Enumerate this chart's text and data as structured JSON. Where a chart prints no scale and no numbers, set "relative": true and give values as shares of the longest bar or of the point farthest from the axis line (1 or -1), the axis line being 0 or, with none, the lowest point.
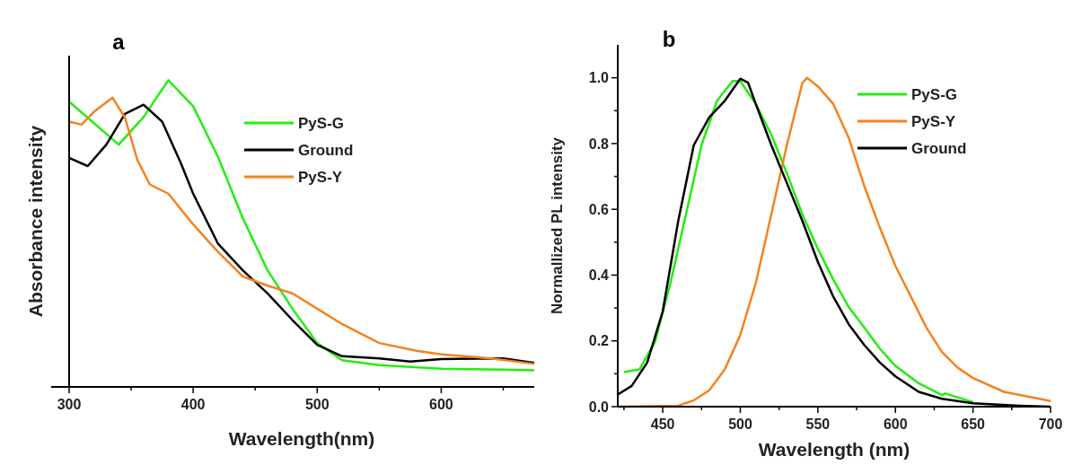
{
  "chart_data": [
    {
      "type": "line",
      "title": "a",
      "xlabel": "Wavelength(nm)",
      "ylabel": "Absorbance intensity",
      "relative": true,
      "xlim": [
        300,
        675
      ],
      "xticks": [
        300,
        {
          "value": 350,
          "label": null
        },
        400,
        {
          "value": 450,
          "label": null
        },
        500,
        {
          "value": 550,
          "label": null
        },
        600,
        {
          "value": 650,
          "label": null
        }
      ],
      "tick_labels": "x",
      "legend": "top right",
      "grid": false,
      "marker": "none",
      "line_style": "solid",
      "series": [
        {
          "name": "PyS-G",
          "color": "#22ee11",
          "x": [
            300,
            340,
            360,
            380,
            400,
            420,
            440,
            460,
            480,
            500,
            520,
            550,
            600,
            650,
            675
          ],
          "values": [
            0.93,
            0.79,
            0.88,
            1.0,
            0.915,
            0.75,
            0.55,
            0.38,
            0.255,
            0.143,
            0.087,
            0.071,
            0.059,
            0.056,
            0.054
          ]
        },
        {
          "name": "Ground",
          "color": "#000000",
          "x": [
            300,
            315,
            330,
            345,
            360,
            375,
            390,
            400,
            420,
            440,
            460,
            480,
            500,
            520,
            550,
            575,
            600,
            650,
            675
          ],
          "values": [
            0.747,
            0.72,
            0.79,
            0.89,
            0.92,
            0.865,
            0.73,
            0.63,
            0.467,
            0.38,
            0.305,
            0.218,
            0.137,
            0.1,
            0.093,
            0.083,
            0.091,
            0.093,
            0.078
          ]
        },
        {
          "name": "PyS-Y",
          "color": "#f5821f",
          "x": [
            300,
            310,
            320,
            335,
            345,
            355,
            365,
            380,
            400,
            420,
            440,
            460,
            480,
            500,
            520,
            550,
            580,
            600,
            640,
            675
          ],
          "values": [
            0.865,
            0.855,
            0.897,
            0.943,
            0.878,
            0.74,
            0.66,
            0.63,
            0.53,
            0.44,
            0.36,
            0.33,
            0.305,
            0.255,
            0.205,
            0.143,
            0.118,
            0.106,
            0.093,
            0.075
          ]
        }
      ]
    },
    {
      "type": "line",
      "title": "b",
      "xlabel": "Wavelength (nm)",
      "ylabel": "Normallized PL intensity",
      "xlim": [
        421,
        700
      ],
      "ylim": [
        0,
        1.1
      ],
      "xticks": [
        {
          "value": 425,
          "label": null
        },
        450,
        {
          "value": 475,
          "label": null
        },
        500,
        {
          "value": 525,
          "label": null
        },
        550,
        {
          "value": 575,
          "label": null
        },
        600,
        {
          "value": 625,
          "label": null
        },
        650,
        {
          "value": 675,
          "label": null
        },
        700
      ],
      "yticks": [
        {
          "value": 0,
          "label": "0.0"
        },
        {
          "value": 0.1,
          "label": null
        },
        0.2,
        {
          "value": 0.3,
          "label": null
        },
        0.4,
        {
          "value": 0.5,
          "label": null
        },
        0.6,
        {
          "value": 0.7,
          "label": null
        },
        0.8,
        {
          "value": 0.9,
          "label": null
        },
        {
          "value": 1,
          "label": "1.0"
        }
      ],
      "legend": "top right",
      "grid": false,
      "marker": "none",
      "line_style": "solid",
      "series": [
        {
          "name": "PyS-G",
          "color": "#22ee11",
          "x": [
            425,
            435,
            445,
            455,
            465,
            475,
            485,
            495,
            500,
            510,
            520,
            530,
            540,
            550,
            560,
            570,
            580,
            590,
            600,
            615,
            630,
            632,
            650
          ],
          "values": [
            0.105,
            0.113,
            0.197,
            0.376,
            0.585,
            0.795,
            0.93,
            0.99,
            0.99,
            0.92,
            0.827,
            0.71,
            0.585,
            0.48,
            0.386,
            0.302,
            0.24,
            0.176,
            0.124,
            0.071,
            0.035,
            0.04,
            0.014
          ]
        },
        {
          "name": "PyS-Y",
          "color": "#f5821f",
          "x": [
            421,
            460,
            470,
            480,
            490,
            500,
            510,
            520,
            530,
            540,
            543,
            550,
            560,
            570,
            580,
            590,
            600,
            610,
            620,
            630,
            640,
            650,
            670,
            700
          ],
          "values": [
            0,
            0.003,
            0.019,
            0.05,
            0.113,
            0.218,
            0.376,
            0.585,
            0.795,
            0.984,
            1.0,
            0.974,
            0.92,
            0.816,
            0.67,
            0.544,
            0.428,
            0.334,
            0.24,
            0.166,
            0.119,
            0.087,
            0.045,
            0.017
          ]
        },
        {
          "name": "Ground",
          "color": "#000000",
          "x": [
            421,
            430,
            440,
            450,
            460,
            470,
            480,
            490,
            500,
            505,
            510,
            520,
            530,
            540,
            550,
            560,
            570,
            580,
            590,
            600,
            615,
            630,
            650,
            680,
            700
          ],
          "values": [
            0.037,
            0.063,
            0.134,
            0.29,
            0.565,
            0.795,
            0.88,
            0.93,
            0.997,
            0.985,
            0.92,
            0.795,
            0.68,
            0.565,
            0.44,
            0.334,
            0.25,
            0.187,
            0.134,
            0.092,
            0.045,
            0.024,
            0.01,
            0.003,
            0
          ]
        }
      ]
    }
  ]
}
